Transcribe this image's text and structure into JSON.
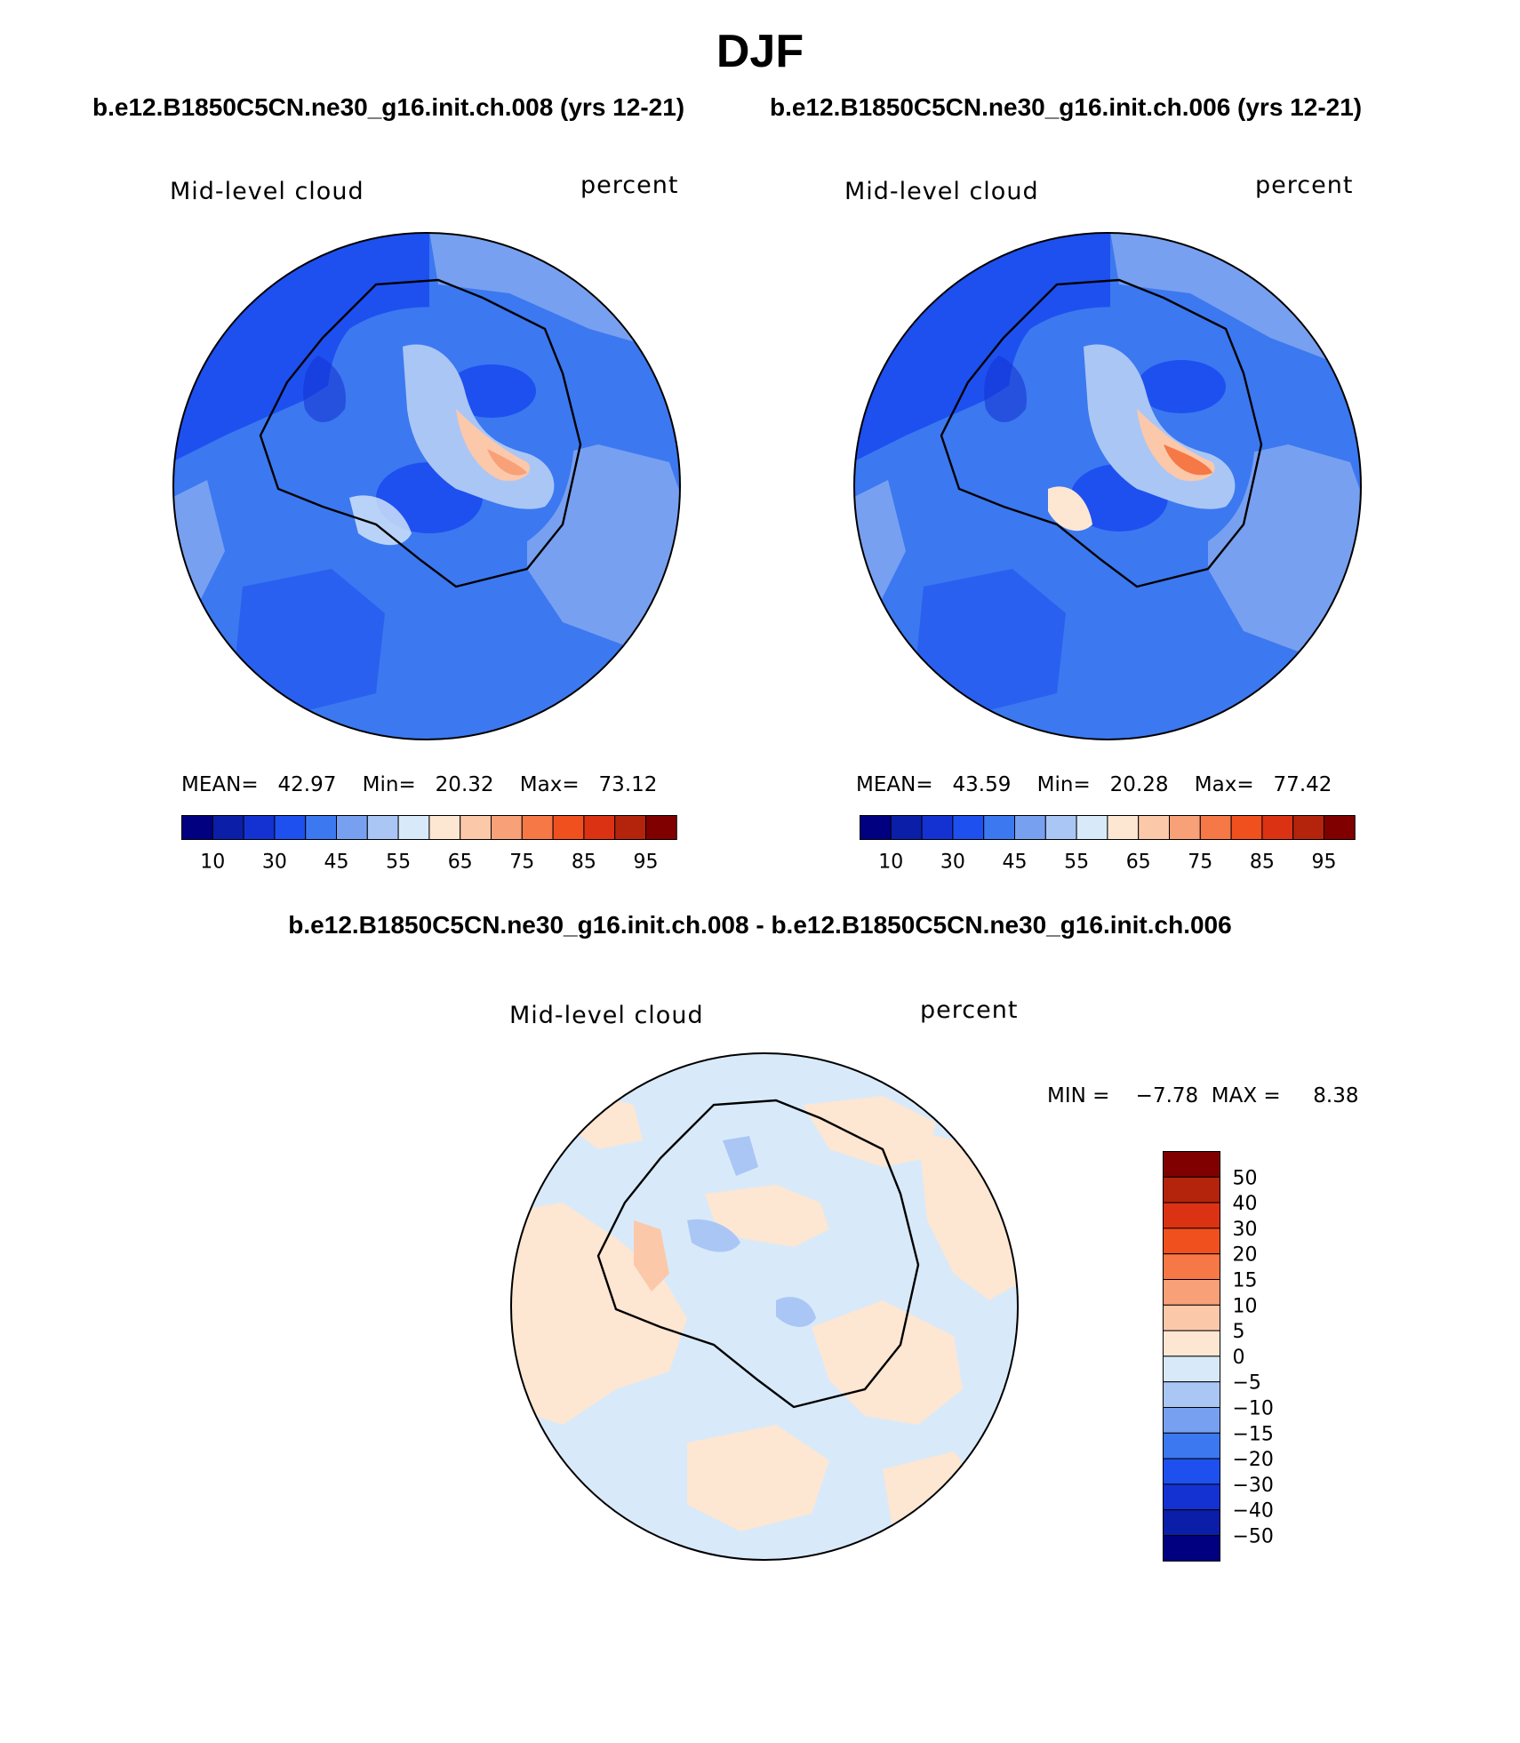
{
  "title": "DJF",
  "panels": [
    {
      "case_title": "b.e12.B1850C5CN.ne30_g16.init.ch.008 (yrs 12-21)",
      "variable": "Mid-level cloud",
      "units": "percent",
      "mean_label": "MEAN=",
      "mean": "42.97",
      "min_label": "Min=",
      "min": "20.32",
      "max_label": "Max=",
      "max": "73.12"
    },
    {
      "case_title": "b.e12.B1850C5CN.ne30_g16.init.ch.006 (yrs 12-21)",
      "variable": "Mid-level cloud",
      "units": "percent",
      "mean_label": "MEAN=",
      "mean": "43.59",
      "min_label": "Min=",
      "min": "20.28",
      "max_label": "Max=",
      "max": "77.42"
    }
  ],
  "colorbar_top": {
    "colors": [
      "#000080",
      "#0a1ea8",
      "#1432d2",
      "#1e50f0",
      "#3c78f0",
      "#78a0f0",
      "#aac6f5",
      "#d8eafa",
      "#fde6d2",
      "#fcc8aa",
      "#f8a078",
      "#f57846",
      "#f0501e",
      "#dc3214",
      "#b4230c",
      "#800000"
    ],
    "tick_labels": [
      "10",
      "30",
      "45",
      "55",
      "65",
      "75",
      "85",
      "95"
    ]
  },
  "difference": {
    "title": "b.e12.B1850C5CN.ne30_g16.init.ch.008 - b.e12.B1850C5CN.ne30_g16.init.ch.006",
    "variable": "Mid-level cloud",
    "units": "percent",
    "min_label": "MIN =",
    "min": "−7.78",
    "max_label": "MAX =",
    "max": "8.38",
    "colorbar": {
      "colors": [
        "#800000",
        "#b4230c",
        "#dc3214",
        "#f0501e",
        "#f57846",
        "#f8a078",
        "#fcc8aa",
        "#fde6d2",
        "#d8eafa",
        "#aac6f5",
        "#78a0f0",
        "#3c78f0",
        "#1e50f0",
        "#1432d2",
        "#0a1ea8",
        "#000080"
      ],
      "tick_labels": [
        "50",
        "40",
        "30",
        "20",
        "15",
        "10",
        "5",
        "0",
        "−5",
        "−10",
        "−15",
        "−20",
        "−30",
        "−40",
        "−50"
      ]
    }
  },
  "map_colors": {
    "ocean_light": "#3c78f0",
    "ocean_dark": "#1e50f0",
    "ocean_pale": "#78a0f0",
    "diff_background": "#d8eafa",
    "diff_positive": "#fde6d2",
    "diff_negative": "#aac6f5"
  }
}
